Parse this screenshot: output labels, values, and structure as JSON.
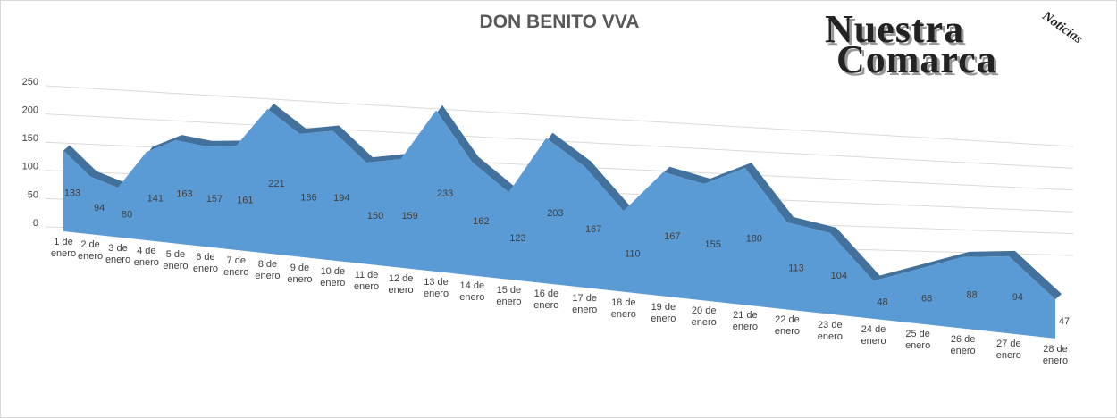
{
  "chart_data": {
    "type": "area",
    "title": "DON BENITO VVA",
    "categories": [
      "1 de enero",
      "2 de enero",
      "3 de enero",
      "4 de enero",
      "5 de enero",
      "6 de enero",
      "7 de enero",
      "8 de enero",
      "9 de enero",
      "10 de enero",
      "11 de enero",
      "12 de enero",
      "13 de enero",
      "14 de enero",
      "15 de enero",
      "16 de enero",
      "17 de enero",
      "18 de enero",
      "19 de enero",
      "20 de enero",
      "21 de enero",
      "22 de enero",
      "23 de enero",
      "24 de enero",
      "25 de enero",
      "26 de enero",
      "27 de enero",
      "28 de enero"
    ],
    "series": [
      {
        "name": "DON BENITO VVA",
        "color": "#5b9bd5",
        "values": [
          133,
          94,
          80,
          141,
          163,
          157,
          161,
          221,
          186,
          194,
          150,
          159,
          233,
          162,
          123,
          203,
          167,
          110,
          167,
          155,
          180,
          113,
          104,
          48,
          68,
          88,
          94,
          47
        ]
      }
    ],
    "ylim": [
      0,
      250
    ],
    "yticks": [
      0,
      50,
      100,
      150,
      200,
      250
    ],
    "grid": true
  },
  "logo": {
    "line1": "Nuestra",
    "line2": "Comarca",
    "tag": "Noticias"
  }
}
